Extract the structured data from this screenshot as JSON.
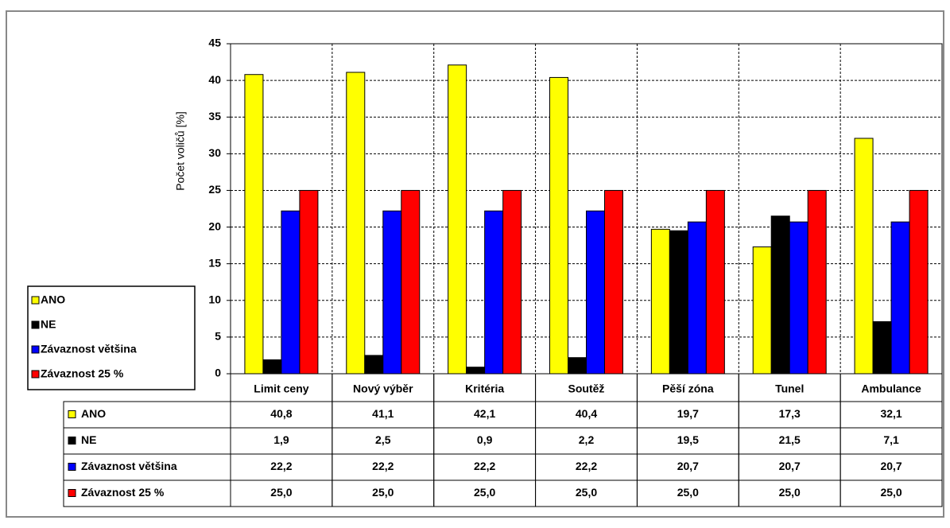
{
  "chart_data": {
    "type": "bar",
    "y_label": "Počet voličů [%]",
    "categories": [
      "Limit ceny",
      "Nový výběr",
      "Kritéria",
      "Soutěž",
      "Pěší zóna",
      "Tunel",
      "Ambulance"
    ],
    "series": [
      {
        "name": "ANO",
        "color": "#ffff00",
        "values": [
          40.8,
          41.1,
          42.1,
          40.4,
          19.7,
          17.3,
          32.1
        ],
        "value_labels": [
          "40,8",
          "41,1",
          "42,1",
          "40,4",
          "19,7",
          "17,3",
          "32,1"
        ]
      },
      {
        "name": "NE",
        "color": "#000000",
        "values": [
          1.9,
          2.5,
          0.9,
          2.2,
          19.5,
          21.5,
          7.1
        ],
        "value_labels": [
          "1,9",
          "2,5",
          "0,9",
          "2,2",
          "19,5",
          "21,5",
          "7,1"
        ]
      },
      {
        "name": "Závaznost většina",
        "color": "#0000ff",
        "values": [
          22.2,
          22.2,
          22.2,
          22.2,
          20.7,
          20.7,
          20.7
        ],
        "value_labels": [
          "22,2",
          "22,2",
          "22,2",
          "22,2",
          "20,7",
          "20,7",
          "20,7"
        ]
      },
      {
        "name": "Závaznost 25 %",
        "color": "#ff0000",
        "values": [
          25.0,
          25.0,
          25.0,
          25.0,
          25.0,
          25.0,
          25.0
        ],
        "value_labels": [
          "25,0",
          "25,0",
          "25,0",
          "25,0",
          "25,0",
          "25,0",
          "25,0"
        ]
      }
    ],
    "ylim": [
      0,
      45
    ],
    "yticks": [
      0,
      5,
      10,
      15,
      20,
      25,
      30,
      35,
      40,
      45
    ],
    "grid": true
  }
}
